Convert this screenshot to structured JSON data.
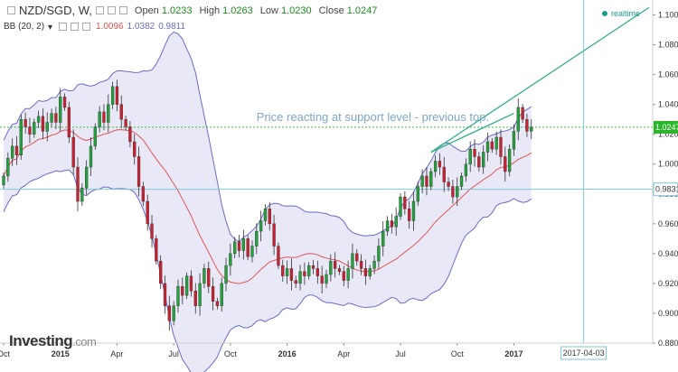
{
  "header": {
    "symbol": "NZD/SGD, W,",
    "open_label": "Open",
    "open": "1.0233",
    "high_label": "High",
    "high": "1.0263",
    "low_label": "Low",
    "low": "1.0230",
    "close_label": "Close",
    "close": "1.0247",
    "bb_label": "BB (20, 2)",
    "bb_middle": "1.0096",
    "bb_upper": "1.0382",
    "bb_lower": "0.9811",
    "realtime": "realtime"
  },
  "logo": {
    "main": "Investing",
    "suffix": ".com"
  },
  "colors": {
    "up": "#21a33a",
    "down": "#cc2030",
    "band_fill": "#e8e8f7",
    "band_line": "#6a6ac8",
    "mid_line": "#e05555",
    "trend_line": "#2fae8a",
    "cursor": "#7fc7d6",
    "support": "#7fc7d6",
    "price_line": "#3db83d"
  },
  "chart_data": {
    "type": "candlestick",
    "title": "NZD/SGD, W,",
    "ylim": [
      0.88,
      1.11
    ],
    "y_ticks": [
      "1.1000",
      "1.0800",
      "1.0600",
      "1.0400",
      "1.0200",
      "1.0000",
      "0.9800",
      "0.9600",
      "0.9400",
      "0.9200",
      "0.9000",
      "0.8800"
    ],
    "y_tick_values": [
      1.1,
      1.08,
      1.06,
      1.04,
      1.02,
      1.0,
      0.98,
      0.96,
      0.94,
      0.92,
      0.9,
      0.88
    ],
    "x_ticks": [
      {
        "label": "Oct",
        "week": 0
      },
      {
        "label": "2015",
        "week": 13
      },
      {
        "label": "Apr",
        "week": 26
      },
      {
        "label": "Jul",
        "week": 39
      },
      {
        "label": "Oct",
        "week": 52
      },
      {
        "label": "2016",
        "week": 65
      },
      {
        "label": "Apr",
        "week": 78
      },
      {
        "label": "Jul",
        "week": 91
      },
      {
        "label": "Oct",
        "week": 104
      },
      {
        "label": "2017",
        "week": 117
      }
    ],
    "x_max_week": 148,
    "closes": [
      0.992,
      1.004,
      1.012,
      1.006,
      1.03,
      1.025,
      1.02,
      1.028,
      1.032,
      1.022,
      1.028,
      1.034,
      1.028,
      1.045,
      1.038,
      1.018,
      0.998,
      0.975,
      0.984,
      0.998,
      1.012,
      1.025,
      1.035,
      1.028,
      1.04,
      1.052,
      1.04,
      1.03,
      1.025,
      1.015,
      1.005,
      0.985,
      0.975,
      0.96,
      0.95,
      0.935,
      0.92,
      0.905,
      0.895,
      0.905,
      0.918,
      0.912,
      0.925,
      0.915,
      0.905,
      0.92,
      0.93,
      0.918,
      0.908,
      0.905,
      0.92,
      0.932,
      0.94,
      0.948,
      0.942,
      0.95,
      0.938,
      0.945,
      0.955,
      0.962,
      0.97,
      0.96,
      0.945,
      0.932,
      0.925,
      0.93,
      0.922,
      0.92,
      0.928,
      0.925,
      0.932,
      0.93,
      0.925,
      0.92,
      0.926,
      0.935,
      0.93,
      0.928,
      0.922,
      0.93,
      0.94,
      0.935,
      0.93,
      0.925,
      0.93,
      0.935,
      0.945,
      0.955,
      0.962,
      0.958,
      0.965,
      0.978,
      0.97,
      0.962,
      0.975,
      0.985,
      0.992,
      0.985,
      0.995,
      1.002,
      0.998,
      0.988,
      0.985,
      0.978,
      0.985,
      0.992,
      1.0,
      1.01,
      1.005,
      0.998,
      1.008,
      1.015,
      1.01,
      1.018,
      1.005,
      0.995,
      1.01,
      1.022,
      1.038,
      1.03,
      1.022,
      1.0247
    ],
    "price_level": 1.0247,
    "price_label": "1.0247",
    "support_level": 0.9831,
    "support_label": "0.9831",
    "annotation": "Price reacting at support level - previous top.",
    "cursor_label": "2017-04-03",
    "cursor_week": 133
  }
}
